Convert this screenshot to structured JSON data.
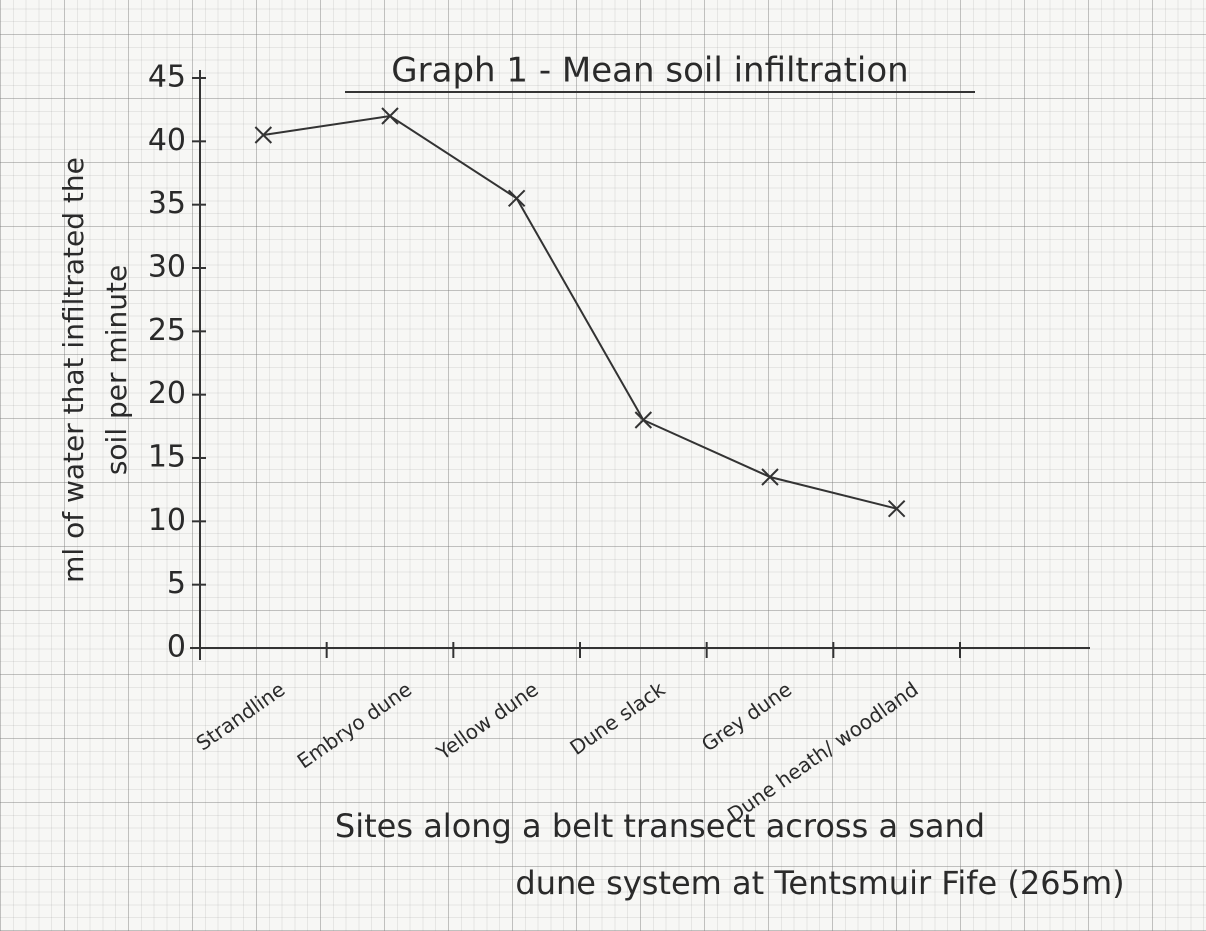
{
  "chart_data": {
    "type": "line",
    "title": "Graph 1 - Mean soil infiltration",
    "y_label": [
      "ml of water that infiltrated the",
      "soil per minute"
    ],
    "x_label": [
      "Sites along a belt transect across a sand",
      "dune system at Tentsmuir Fife (265m)"
    ],
    "categories": [
      "Strandline",
      "Embryo dune",
      "Yellow dune",
      "Dune slack",
      "Grey dune",
      "Dune heath/ woodland"
    ],
    "values": [
      40.5,
      42,
      35.5,
      18,
      13.5,
      11
    ],
    "color": "#333333",
    "ylim": [
      0,
      45
    ],
    "yticks": [
      0,
      5,
      10,
      15,
      20,
      25,
      30,
      35,
      40,
      45
    ]
  }
}
